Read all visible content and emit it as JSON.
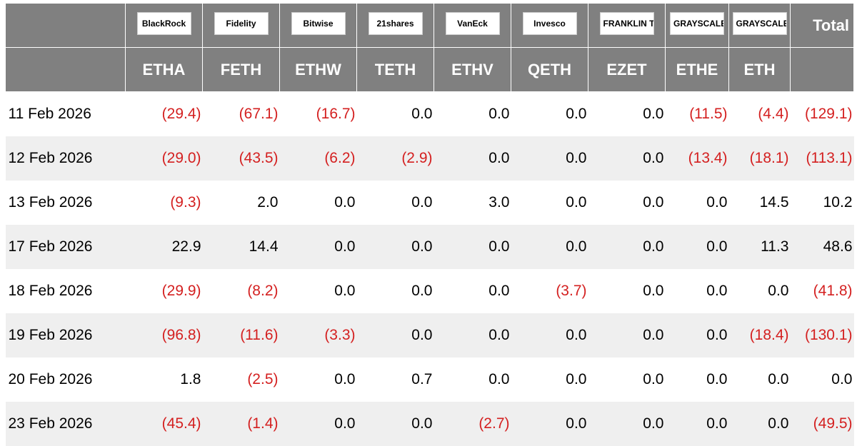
{
  "table": {
    "logos": [
      "BlackRock",
      "Fidelity",
      "Bitwise",
      "21shares",
      "VanEck",
      "Invesco",
      "FRANKLIN TEMPLETON",
      "GRAYSCALE",
      "GRAYSCALE"
    ],
    "total_label": "Total",
    "tickers": [
      "ETHA",
      "FETH",
      "ETHW",
      "TETH",
      "ETHV",
      "QETH",
      "EZET",
      "ETHE",
      "ETH"
    ],
    "rows": [
      [
        "11 Feb 2026",
        "(29.4)",
        "(67.1)",
        "(16.7)",
        "0.0",
        "0.0",
        "0.0",
        "0.0",
        "(11.5)",
        "(4.4)",
        "(129.1)"
      ],
      [
        "12 Feb 2026",
        "(29.0)",
        "(43.5)",
        "(6.2)",
        "(2.9)",
        "0.0",
        "0.0",
        "0.0",
        "(13.4)",
        "(18.1)",
        "(113.1)"
      ],
      [
        "13 Feb 2026",
        "(9.3)",
        "2.0",
        "0.0",
        "0.0",
        "3.0",
        "0.0",
        "0.0",
        "0.0",
        "14.5",
        "10.2"
      ],
      [
        "17 Feb 2026",
        "22.9",
        "14.4",
        "0.0",
        "0.0",
        "0.0",
        "0.0",
        "0.0",
        "0.0",
        "11.3",
        "48.6"
      ],
      [
        "18 Feb 2026",
        "(29.9)",
        "(8.2)",
        "0.0",
        "0.0",
        "0.0",
        "(3.7)",
        "0.0",
        "0.0",
        "0.0",
        "(41.8)"
      ],
      [
        "19 Feb 2026",
        "(96.8)",
        "(11.6)",
        "(3.3)",
        "0.0",
        "0.0",
        "0.0",
        "0.0",
        "0.0",
        "(18.4)",
        "(130.1)"
      ],
      [
        "20 Feb 2026",
        "1.8",
        "(2.5)",
        "0.0",
        "0.7",
        "0.0",
        "0.0",
        "0.0",
        "0.0",
        "0.0",
        "0.0"
      ],
      [
        "23 Feb 2026",
        "(45.4)",
        "(1.4)",
        "0.0",
        "0.0",
        "(2.7)",
        "0.0",
        "0.0",
        "0.0",
        "0.0",
        "(49.5)"
      ]
    ]
  }
}
